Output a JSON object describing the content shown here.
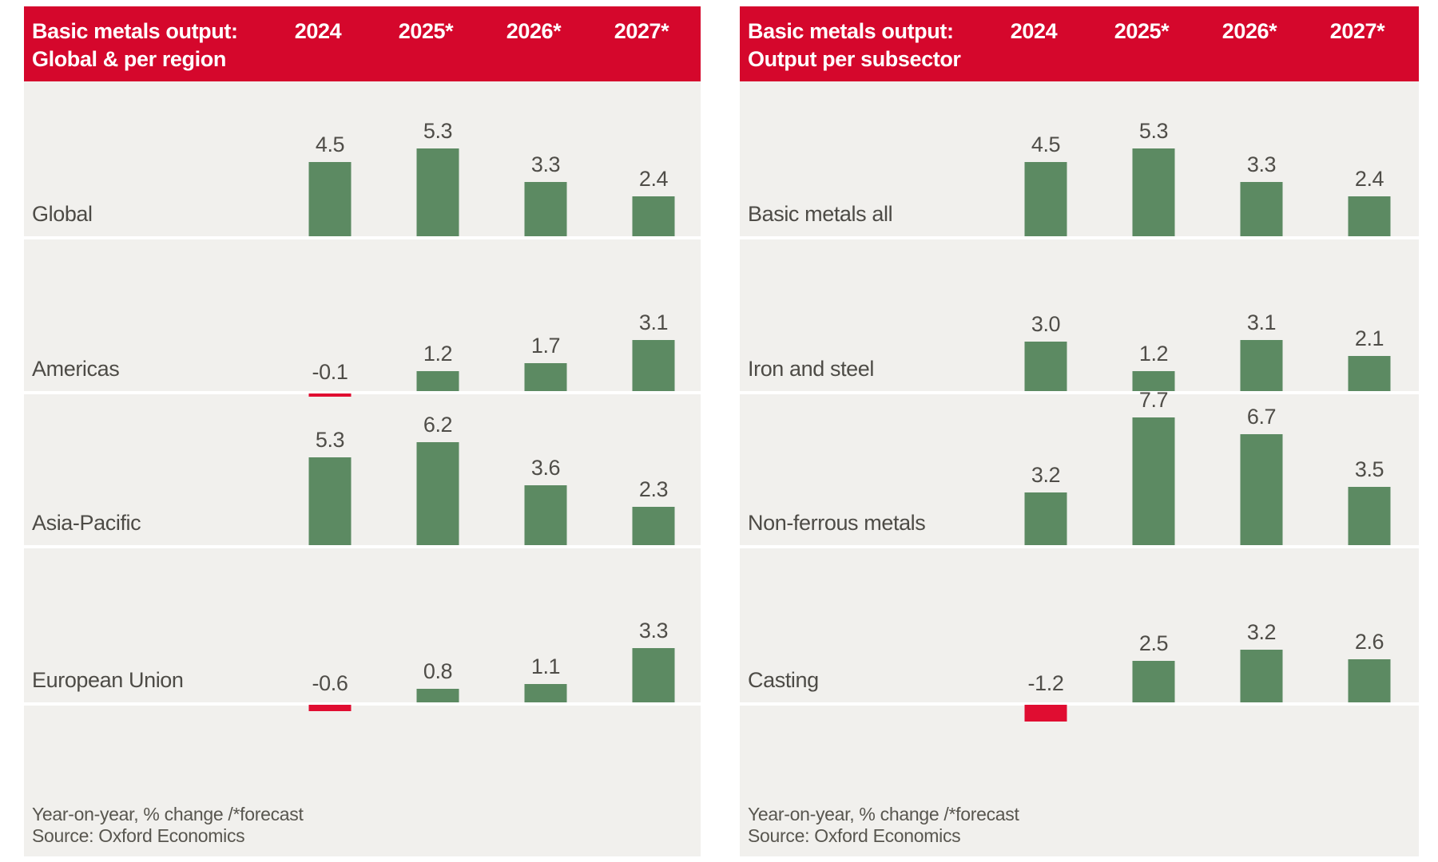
{
  "colors": {
    "header_red": "#d5072c",
    "negative_bar_red": "#e00d31",
    "positive_bar_green": "#5c8a62",
    "panel_bg": "#f1f0ed",
    "page_bg": "#ffffff",
    "header_text": "#ffffff",
    "label_text": "#4d4b46",
    "value_text": "#4f4d48",
    "footer_text": "#58564f"
  },
  "columns": [
    "2024",
    "2025*",
    "2026*",
    "2027*"
  ],
  "panels": [
    {
      "title_line1": "Basic metals output:",
      "title_line2": "Global & per region",
      "footnote": "Year-on-year, % change /*forecast",
      "source": "Source: Oxford Economics"
    },
    {
      "title_line1": "Basic metals output:",
      "title_line2": "Output per subsector",
      "footnote": "Year-on-year, % change /*forecast",
      "source": "Source: Oxford Economics"
    }
  ],
  "chart_data": [
    {
      "type": "bar",
      "title": "Basic metals output: Global & per region",
      "categories": [
        "2024",
        "2025*",
        "2026*",
        "2027*"
      ],
      "series": [
        {
          "name": "Global",
          "values": [
            4.5,
            5.3,
            3.3,
            2.4
          ]
        },
        {
          "name": "Americas",
          "values": [
            -0.1,
            1.2,
            1.7,
            3.1
          ]
        },
        {
          "name": "Asia-Pacific",
          "values": [
            5.3,
            6.2,
            3.6,
            2.3
          ]
        },
        {
          "name": "European Union",
          "values": [
            -0.6,
            0.8,
            1.1,
            3.3
          ]
        }
      ],
      "value_labels": true,
      "axes_hidden": true,
      "note": "Year-on-year, % change /*forecast",
      "source": "Source: Oxford Economics"
    },
    {
      "type": "bar",
      "title": "Basic metals output: Output per subsector",
      "categories": [
        "2024",
        "2025*",
        "2026*",
        "2027*"
      ],
      "series": [
        {
          "name": "Basic metals all",
          "values": [
            4.5,
            5.3,
            3.3,
            2.4
          ]
        },
        {
          "name": "Iron and steel",
          "values": [
            3.0,
            1.2,
            3.1,
            2.1
          ]
        },
        {
          "name": "Non-ferrous metals",
          "values": [
            3.2,
            7.7,
            6.7,
            3.5
          ]
        },
        {
          "name": "Casting",
          "values": [
            -1.2,
            2.5,
            3.2,
            2.6
          ]
        }
      ],
      "value_labels": true,
      "axes_hidden": true,
      "note": "Year-on-year, % change /*forecast",
      "source": "Source: Oxford Economics"
    }
  ]
}
